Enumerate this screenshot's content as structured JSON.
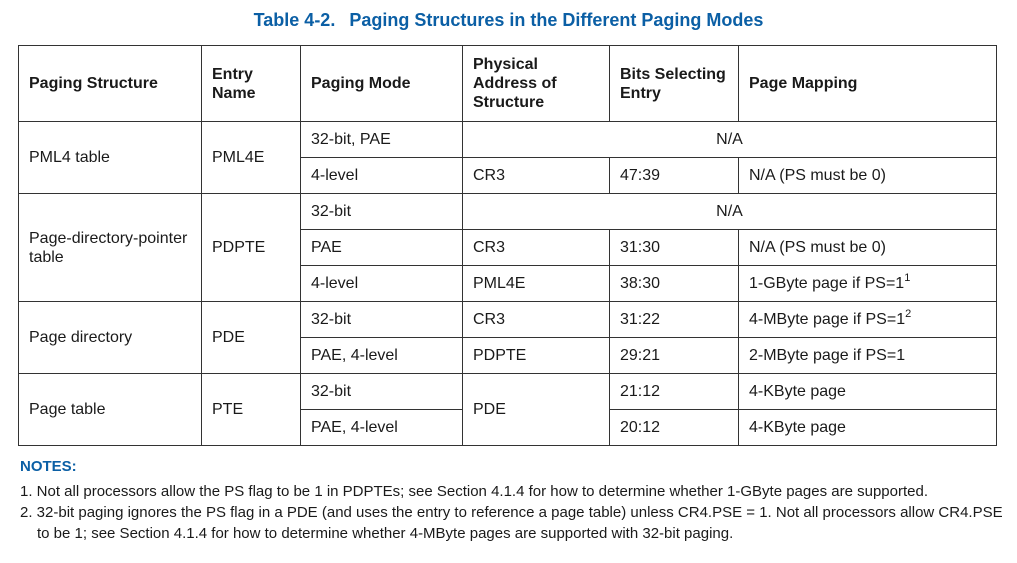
{
  "caption": {
    "number": "Table 4-2.",
    "title": "Paging Structures in the Different Paging Modes"
  },
  "headers": {
    "paging_structure": "Paging Structure",
    "entry_name": "Entry Name",
    "paging_mode": "Paging Mode",
    "physical_address": "Physical Address of Structure",
    "bits_selecting": "Bits Selecting Entry",
    "page_mapping": "Page Mapping"
  },
  "rows": {
    "pml4": {
      "structure": "PML4 table",
      "entry": "PML4E",
      "r1": {
        "mode": "32-bit, PAE",
        "na": "N/A"
      },
      "r2": {
        "mode": "4-level",
        "address": "CR3",
        "bits": "47:39",
        "mapping": "N/A (PS must be 0)"
      }
    },
    "pdpt": {
      "structure": "Page-directory-pointer table",
      "entry": "PDPTE",
      "r1": {
        "mode": "32-bit",
        "na": "N/A"
      },
      "r2": {
        "mode": "PAE",
        "address": "CR3",
        "bits": "31:30",
        "mapping": "N/A (PS must be 0)"
      },
      "r3": {
        "mode": "4-level",
        "address": "PML4E",
        "bits": "38:30",
        "mapping": "1-GByte page if PS=1",
        "note": "1"
      }
    },
    "pd": {
      "structure": "Page directory",
      "entry": "PDE",
      "r1": {
        "mode": "32-bit",
        "address": "CR3",
        "bits": "31:22",
        "mapping": "4-MByte page if PS=1",
        "note": "2"
      },
      "r2": {
        "mode": "PAE, 4-level",
        "address": "PDPTE",
        "bits": "29:21",
        "mapping": "2-MByte page if PS=1"
      }
    },
    "pt": {
      "structure": "Page table",
      "entry": "PTE",
      "address": "PDE",
      "r1": {
        "mode": "32-bit",
        "bits": "21:12",
        "mapping": "4-KByte page"
      },
      "r2": {
        "mode": "PAE, 4-level",
        "bits": "20:12",
        "mapping": "4-KByte page"
      }
    }
  },
  "notes": {
    "title": "NOTES:",
    "items": [
      "1. Not all processors allow the PS flag to be 1 in PDPTEs; see Section 4.1.4 for how to determine whether 1-GByte pages are supported.",
      "2. 32-bit paging ignores the PS flag in a PDE (and uses the entry to reference a page table) unless CR4.PSE = 1. Not all processors allow CR4.PSE to be 1; see Section 4.1.4 for how to determine whether 4-MByte pages are supported with 32-bit paging."
    ]
  }
}
